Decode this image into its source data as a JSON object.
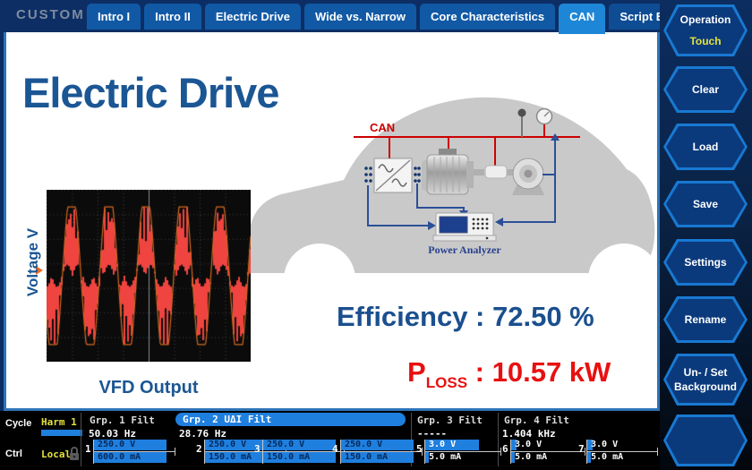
{
  "colors": {
    "accent_blue": "#1E86D6",
    "tab_blue": "#1159A5",
    "navy": "#0D2E64",
    "bar_blue": "#1F7FDE",
    "title_blue": "#1B5694",
    "red": "#E81010",
    "yellow": "#E3E23C"
  },
  "header": {
    "brand": "CUSTOM",
    "tabs": [
      {
        "label": "Intro I",
        "active": false
      },
      {
        "label": "Intro II",
        "active": false
      },
      {
        "label": "Electric Drive",
        "active": false
      },
      {
        "label": "Wide vs. Narrow",
        "active": false
      },
      {
        "label": "Core Characteristics",
        "active": false
      },
      {
        "label": "CAN",
        "active": true
      },
      {
        "label": "Script Editor",
        "active": false
      }
    ]
  },
  "sidebar": {
    "buttons": [
      {
        "label": "Operation",
        "sub": "Touch"
      },
      {
        "label": "Clear"
      },
      {
        "label": "Load"
      },
      {
        "label": "Save"
      },
      {
        "label": "Settings"
      },
      {
        "label": "Rename"
      },
      {
        "label": "Un- / Set",
        "label2": "Background"
      },
      {
        "label": ""
      }
    ]
  },
  "main": {
    "title": "Electric Drive",
    "efficiency": "Efficiency : 72.50 %",
    "ploss_p": "P",
    "ploss_sub": "LOSS",
    "ploss_rest": " : 10.57 kW",
    "waveform": {
      "ylabel": "Voltage V",
      "caption": "VFD Output",
      "periods": 5.5,
      "phase": 3.6,
      "zero": 0.5,
      "amp": 0.4,
      "overmod": 1.3,
      "trace_color": "#EF4440",
      "envelope_color": "#D2691E",
      "marker_color": "#F06A21"
    },
    "diagram": {
      "can_label": "CAN",
      "analyzer_label": "Power Analyzer",
      "bus_color": "#CC0000",
      "line_color": "#2B4F97"
    }
  },
  "statusbar": {
    "cycle_label": "Cycle",
    "cycle_value": "Harm 1",
    "ctrl_label": "Ctrl",
    "ctrl_value": "Local",
    "groups": [
      {
        "name": "Grp. 1 Filt",
        "freq": "50.03 Hz",
        "highlight": false
      },
      {
        "name": "Grp. 2 UΔI Filt",
        "freq": "28.76 Hz",
        "highlight": true
      },
      {
        "name": "Grp. 3 Filt",
        "freq": "-----",
        "highlight": false
      },
      {
        "name": "Grp. 4 Filt",
        "freq": "1.404 kHz",
        "highlight": false
      }
    ],
    "channels": [
      {
        "num": "1",
        "v": "250.0 V",
        "v_fill": 0.94,
        "i": "600.0 mA",
        "i_fill": 0.94
      },
      {
        "num": "2",
        "v": "250.0 V",
        "v_fill": 0.94,
        "i": "150.0 mA",
        "i_fill": 0.94
      },
      {
        "num": "3",
        "v": "250.0 V",
        "v_fill": 0.94,
        "i": "150.0 mA",
        "i_fill": 0.94
      },
      {
        "num": "4",
        "v": "250.0 V",
        "v_fill": 0.94,
        "i": "150.0 mA",
        "i_fill": 0.94
      },
      {
        "num": "5",
        "v": "3.0 V",
        "v_fill": 0.7,
        "i": "5.0 mA",
        "i_fill": 0.05
      },
      {
        "num": "6",
        "v": "3.0 V",
        "v_fill": 0.07,
        "i": "5.0 mA",
        "i_fill": 0.05
      },
      {
        "num": "7",
        "v": "3.0 V",
        "v_fill": 0.07,
        "i": "5.0 mA",
        "i_fill": 0.05
      }
    ]
  }
}
